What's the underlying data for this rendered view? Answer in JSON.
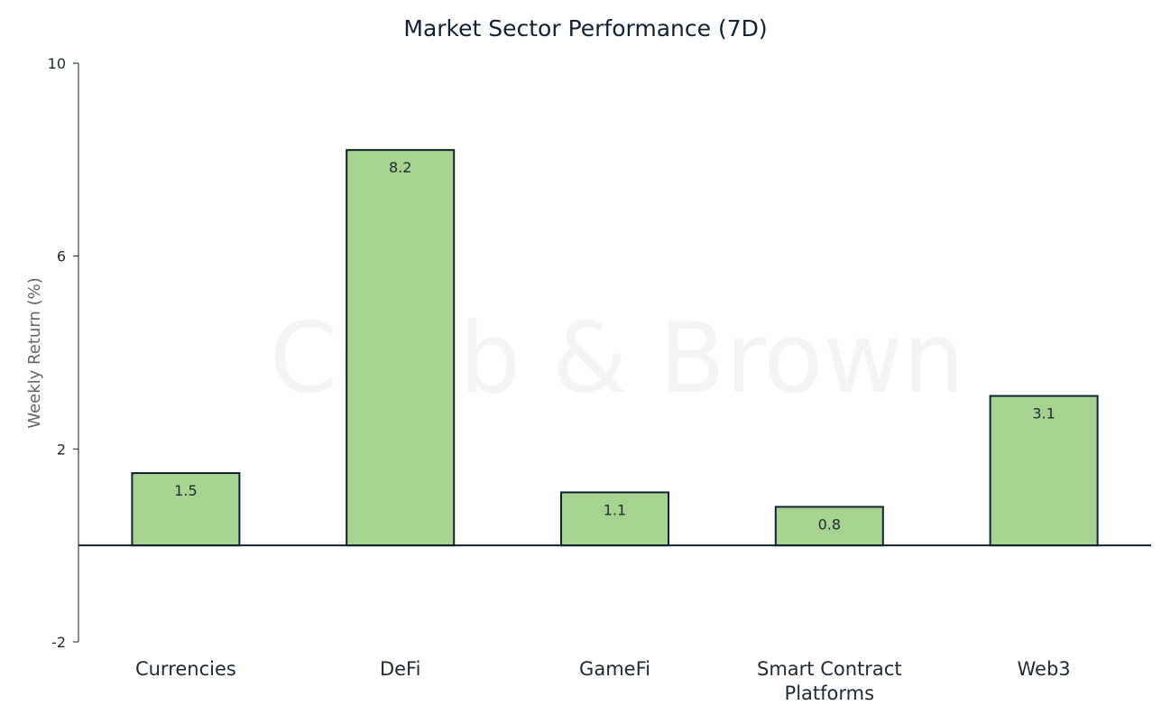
{
  "chart_data": {
    "type": "bar",
    "title": "Market Sector Performance (7D)",
    "xlabel": "",
    "ylabel": "Weekly Return (%)",
    "categories": [
      "Currencies",
      "DeFi",
      "GameFi",
      "Smart Contract Platforms",
      "Web3"
    ],
    "category_lines": [
      [
        "Currencies"
      ],
      [
        "DeFi"
      ],
      [
        "GameFi"
      ],
      [
        "Smart Contract",
        "Platforms"
      ],
      [
        "Web3"
      ]
    ],
    "values": [
      1.5,
      8.2,
      1.1,
      0.8,
      3.1
    ],
    "data_labels": [
      "1.5",
      "8.2",
      "1.1",
      "0.8",
      "3.1"
    ],
    "ylim": [
      -2,
      10
    ],
    "yticks": [
      10,
      6,
      2,
      -2
    ],
    "grid": false,
    "watermark": "Cobb & Brown",
    "colors": {
      "bar_fill": "#a8d28f",
      "bar_stroke": "#0f2233",
      "axis": "#0f2233"
    }
  }
}
